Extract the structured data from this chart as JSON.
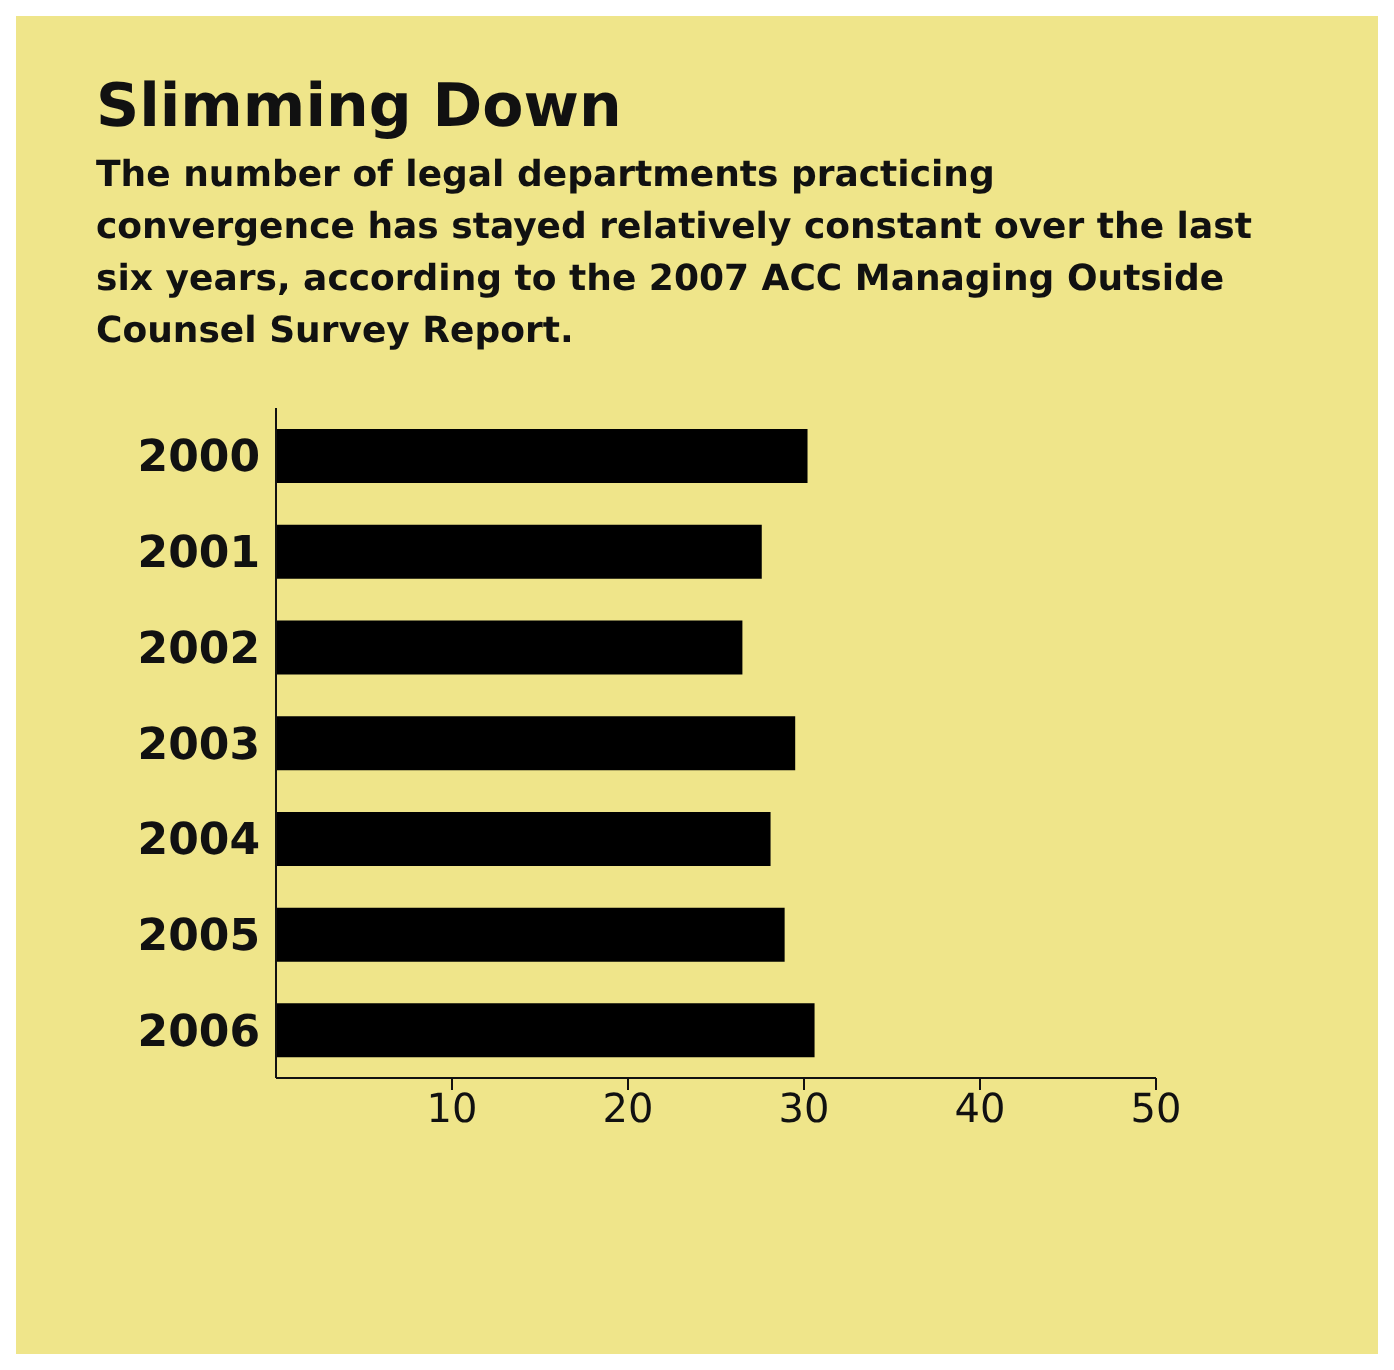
{
  "chart_data": {
    "type": "bar",
    "orientation": "horizontal",
    "title": "Slimming Down",
    "subtitle": "The number of legal departments practicing convergence has stayed relatively constant over the last six years, according to the 2007 ACC Managing Outside Counsel Survey Report.",
    "categories": [
      "2000",
      "2001",
      "2002",
      "2003",
      "2004",
      "2005",
      "2006"
    ],
    "values": [
      30.2,
      27.6,
      26.5,
      29.5,
      28.1,
      28.9,
      30.6
    ],
    "color": "#000000",
    "xlim": [
      0,
      50
    ],
    "xticks": [
      10,
      20,
      30,
      40,
      50
    ],
    "grid": false,
    "legend": false
  }
}
